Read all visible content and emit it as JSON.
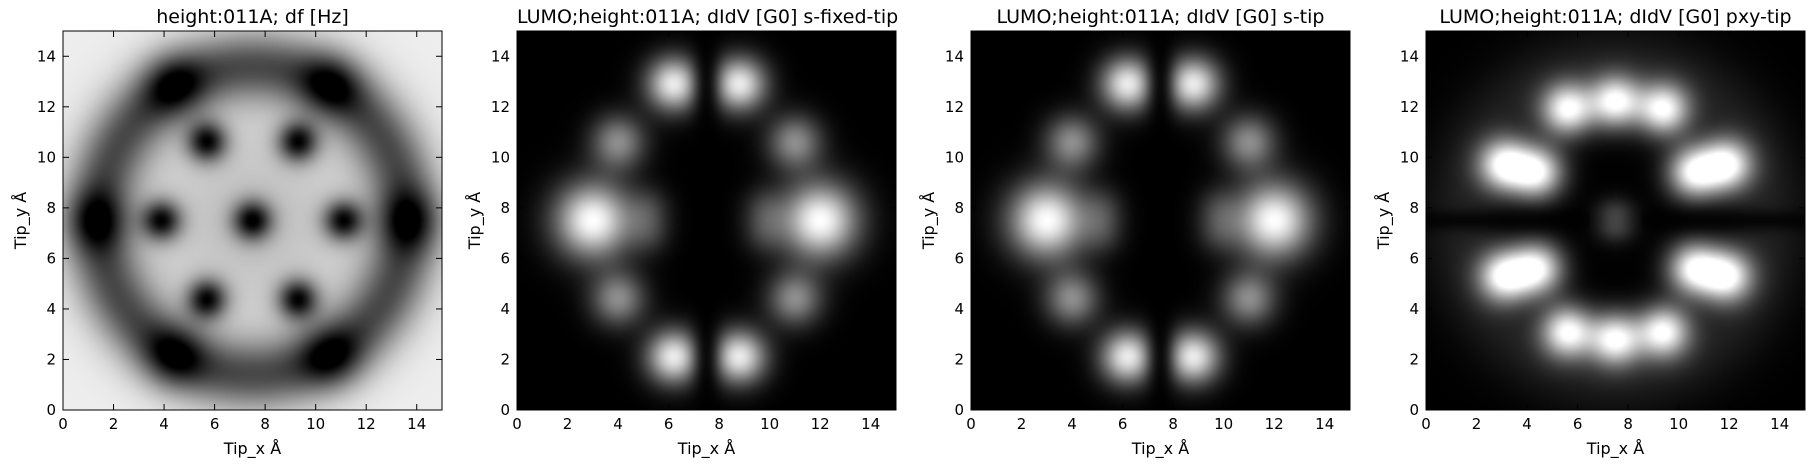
{
  "chart_data": [
    {
      "type": "heatmap",
      "title": "height:011A; df [Hz]",
      "xlabel": "Tip_x Å",
      "ylabel": "Tip_y Å",
      "xlim": [
        0,
        15
      ],
      "ylim": [
        0,
        15
      ],
      "xticks": [
        "0",
        "2",
        "4",
        "6",
        "8",
        "10",
        "12",
        "14"
      ],
      "yticks": [
        "0",
        "2",
        "4",
        "6",
        "8",
        "10",
        "12",
        "14"
      ],
      "colormap": "gray",
      "pattern": "df"
    },
    {
      "type": "heatmap",
      "title": "LUMO;height:011A; dIdV [G0] s-fixed-tip",
      "xlabel": "Tip_x Å",
      "ylabel": "Tip_y Å",
      "xlim": [
        0,
        15
      ],
      "ylim": [
        0,
        15
      ],
      "xticks": [
        "0",
        "2",
        "4",
        "6",
        "8",
        "10",
        "12",
        "14"
      ],
      "yticks": [
        "0",
        "2",
        "4",
        "6",
        "8",
        "10",
        "12",
        "14"
      ],
      "colormap": "gray",
      "pattern": "s"
    },
    {
      "type": "heatmap",
      "title": "LUMO;height:011A; dIdV [G0] s-tip",
      "xlabel": "Tip_x Å",
      "ylabel": "Tip_y Å",
      "xlim": [
        0,
        15
      ],
      "ylim": [
        0,
        15
      ],
      "xticks": [
        "0",
        "2",
        "4",
        "6",
        "8",
        "10",
        "12",
        "14"
      ],
      "yticks": [
        "0",
        "2",
        "4",
        "6",
        "8",
        "10",
        "12",
        "14"
      ],
      "colormap": "gray",
      "pattern": "s"
    },
    {
      "type": "heatmap",
      "title": "LUMO;height:011A; dIdV [G0] pxy-tip",
      "xlabel": "Tip_x Å",
      "ylabel": "Tip_y Å",
      "xlim": [
        0,
        15
      ],
      "ylim": [
        0,
        15
      ],
      "xticks": [
        "0",
        "2",
        "4",
        "6",
        "8",
        "10",
        "12",
        "14"
      ],
      "yticks": [
        "0",
        "2",
        "4",
        "6",
        "8",
        "10",
        "12",
        "14"
      ],
      "colormap": "gray",
      "pattern": "pxy"
    }
  ]
}
